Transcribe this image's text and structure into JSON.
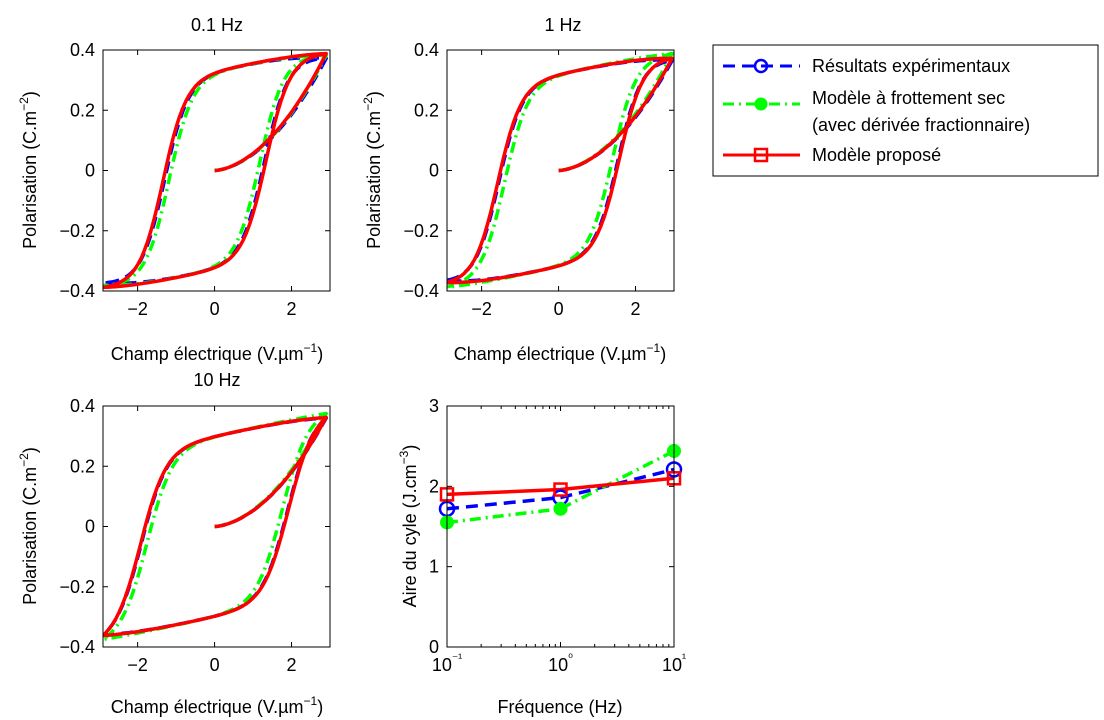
{
  "colors": {
    "experimental": "#0000ff",
    "dry_friction": "#00ff00",
    "proposed": "#ff0000"
  },
  "legend": {
    "placement": "outside-top-right",
    "entries": [
      {
        "key": "experimental",
        "marker": "circle",
        "style": "dashed",
        "lines": [
          "Résultats expérimentaux"
        ]
      },
      {
        "key": "dry_friction",
        "marker": "dot",
        "style": "dash-dot",
        "lines": [
          "Modèle à frottement sec",
          "(avec dérivée fractionnaire)"
        ]
      },
      {
        "key": "proposed",
        "marker": "square",
        "style": "solid",
        "lines": [
          "Modèle proposé"
        ]
      }
    ]
  },
  "chart_data": [
    {
      "type": "line",
      "title": "0.1 Hz",
      "xlabel": "Champ électrique (V.µm⁻¹)",
      "ylabel": "Polarisation (C.m⁻²)",
      "xlim": [
        -2.9,
        3
      ],
      "ylim": [
        -0.4,
        0.4
      ],
      "xticks": [
        "−2",
        "0",
        "2"
      ],
      "xtick_values": [
        -2,
        0,
        2
      ],
      "yticks": [
        "−0.4",
        "−0.2",
        "0",
        "0.2",
        "0.4"
      ],
      "ytick_values": [
        -0.4,
        -0.2,
        0,
        0.2,
        0.4
      ],
      "grid": false,
      "loop": {
        "ec": 1.3,
        "ps": 0.33,
        "ki": 0.6,
        "emax": 2.9,
        "pmax": 0.385
      },
      "series": [
        {
          "key": "experimental",
          "shift": 0.0,
          "pmax": 0.372
        },
        {
          "key": "dry_friction",
          "shift": -0.12,
          "pmax": 0.382
        },
        {
          "key": "proposed",
          "shift": 0.04,
          "pmax": 0.388
        }
      ]
    },
    {
      "type": "line",
      "title": "1 Hz",
      "xlabel": "Champ électrique (V.µm⁻¹)",
      "ylabel": "Polarisation (C.m⁻²)",
      "xlim": [
        -2.9,
        3
      ],
      "ylim": [
        -0.4,
        0.4
      ],
      "xticks": [
        "−2",
        "0",
        "2"
      ],
      "xtick_values": [
        -2,
        0,
        2
      ],
      "yticks": [
        "−0.4",
        "−0.2",
        "0",
        "0.2",
        "0.4"
      ],
      "ytick_values": [
        -0.4,
        -0.2,
        0,
        0.2,
        0.4
      ],
      "grid": false,
      "loop": {
        "ec": 1.55,
        "ps": 0.32,
        "ki": 0.6,
        "emax": 2.95,
        "pmax": 0.375
      },
      "series": [
        {
          "key": "experimental",
          "shift": 0.0,
          "pmax": 0.365
        },
        {
          "key": "dry_friction",
          "shift": -0.15,
          "pmax": 0.388
        },
        {
          "key": "proposed",
          "shift": 0.03,
          "pmax": 0.372
        }
      ]
    },
    {
      "type": "line",
      "title": "10 Hz",
      "xlabel": "Champ électrique (V.µm⁻¹)",
      "ylabel": "Polarisation (C.m⁻²)",
      "xlim": [
        -2.9,
        3
      ],
      "ylim": [
        -0.4,
        0.4
      ],
      "xticks": [
        "−2",
        "0",
        "2"
      ],
      "xtick_values": [
        -2,
        0,
        2
      ],
      "yticks": [
        "−0.4",
        "−0.2",
        "0",
        "0.2",
        "0.4"
      ],
      "ytick_values": [
        -0.4,
        -0.2,
        0,
        0.2,
        0.4
      ],
      "grid": false,
      "loop": {
        "ec": 1.9,
        "ps": 0.3,
        "ki": 0.65,
        "emax": 2.9,
        "pmax": 0.365
      },
      "series": [
        {
          "key": "experimental",
          "shift": 0.0,
          "pmax": 0.36
        },
        {
          "key": "dry_friction",
          "shift": -0.15,
          "pmax": 0.375
        },
        {
          "key": "proposed",
          "shift": 0.02,
          "pmax": 0.362
        }
      ]
    },
    {
      "type": "line",
      "title": "",
      "xlabel": "Fréquence (Hz)",
      "ylabel": "Aire du cyle (J.cm⁻³)",
      "xscale": "log",
      "xlim": [
        0.1,
        10
      ],
      "ylim": [
        0,
        3
      ],
      "xticks": [
        "10⁻¹",
        "10⁰",
        "10¹"
      ],
      "xtick_values": [
        0.1,
        1,
        10
      ],
      "yticks": [
        "0",
        "1",
        "2",
        "3"
      ],
      "ytick_values": [
        0,
        1,
        2,
        3
      ],
      "grid": false,
      "x": [
        0.1,
        1,
        10
      ],
      "series": [
        {
          "key": "experimental",
          "values": [
            1.72,
            1.86,
            2.21
          ]
        },
        {
          "key": "dry_friction",
          "values": [
            1.55,
            1.72,
            2.44
          ]
        },
        {
          "key": "proposed",
          "values": [
            1.9,
            1.96,
            2.1
          ]
        }
      ]
    }
  ]
}
